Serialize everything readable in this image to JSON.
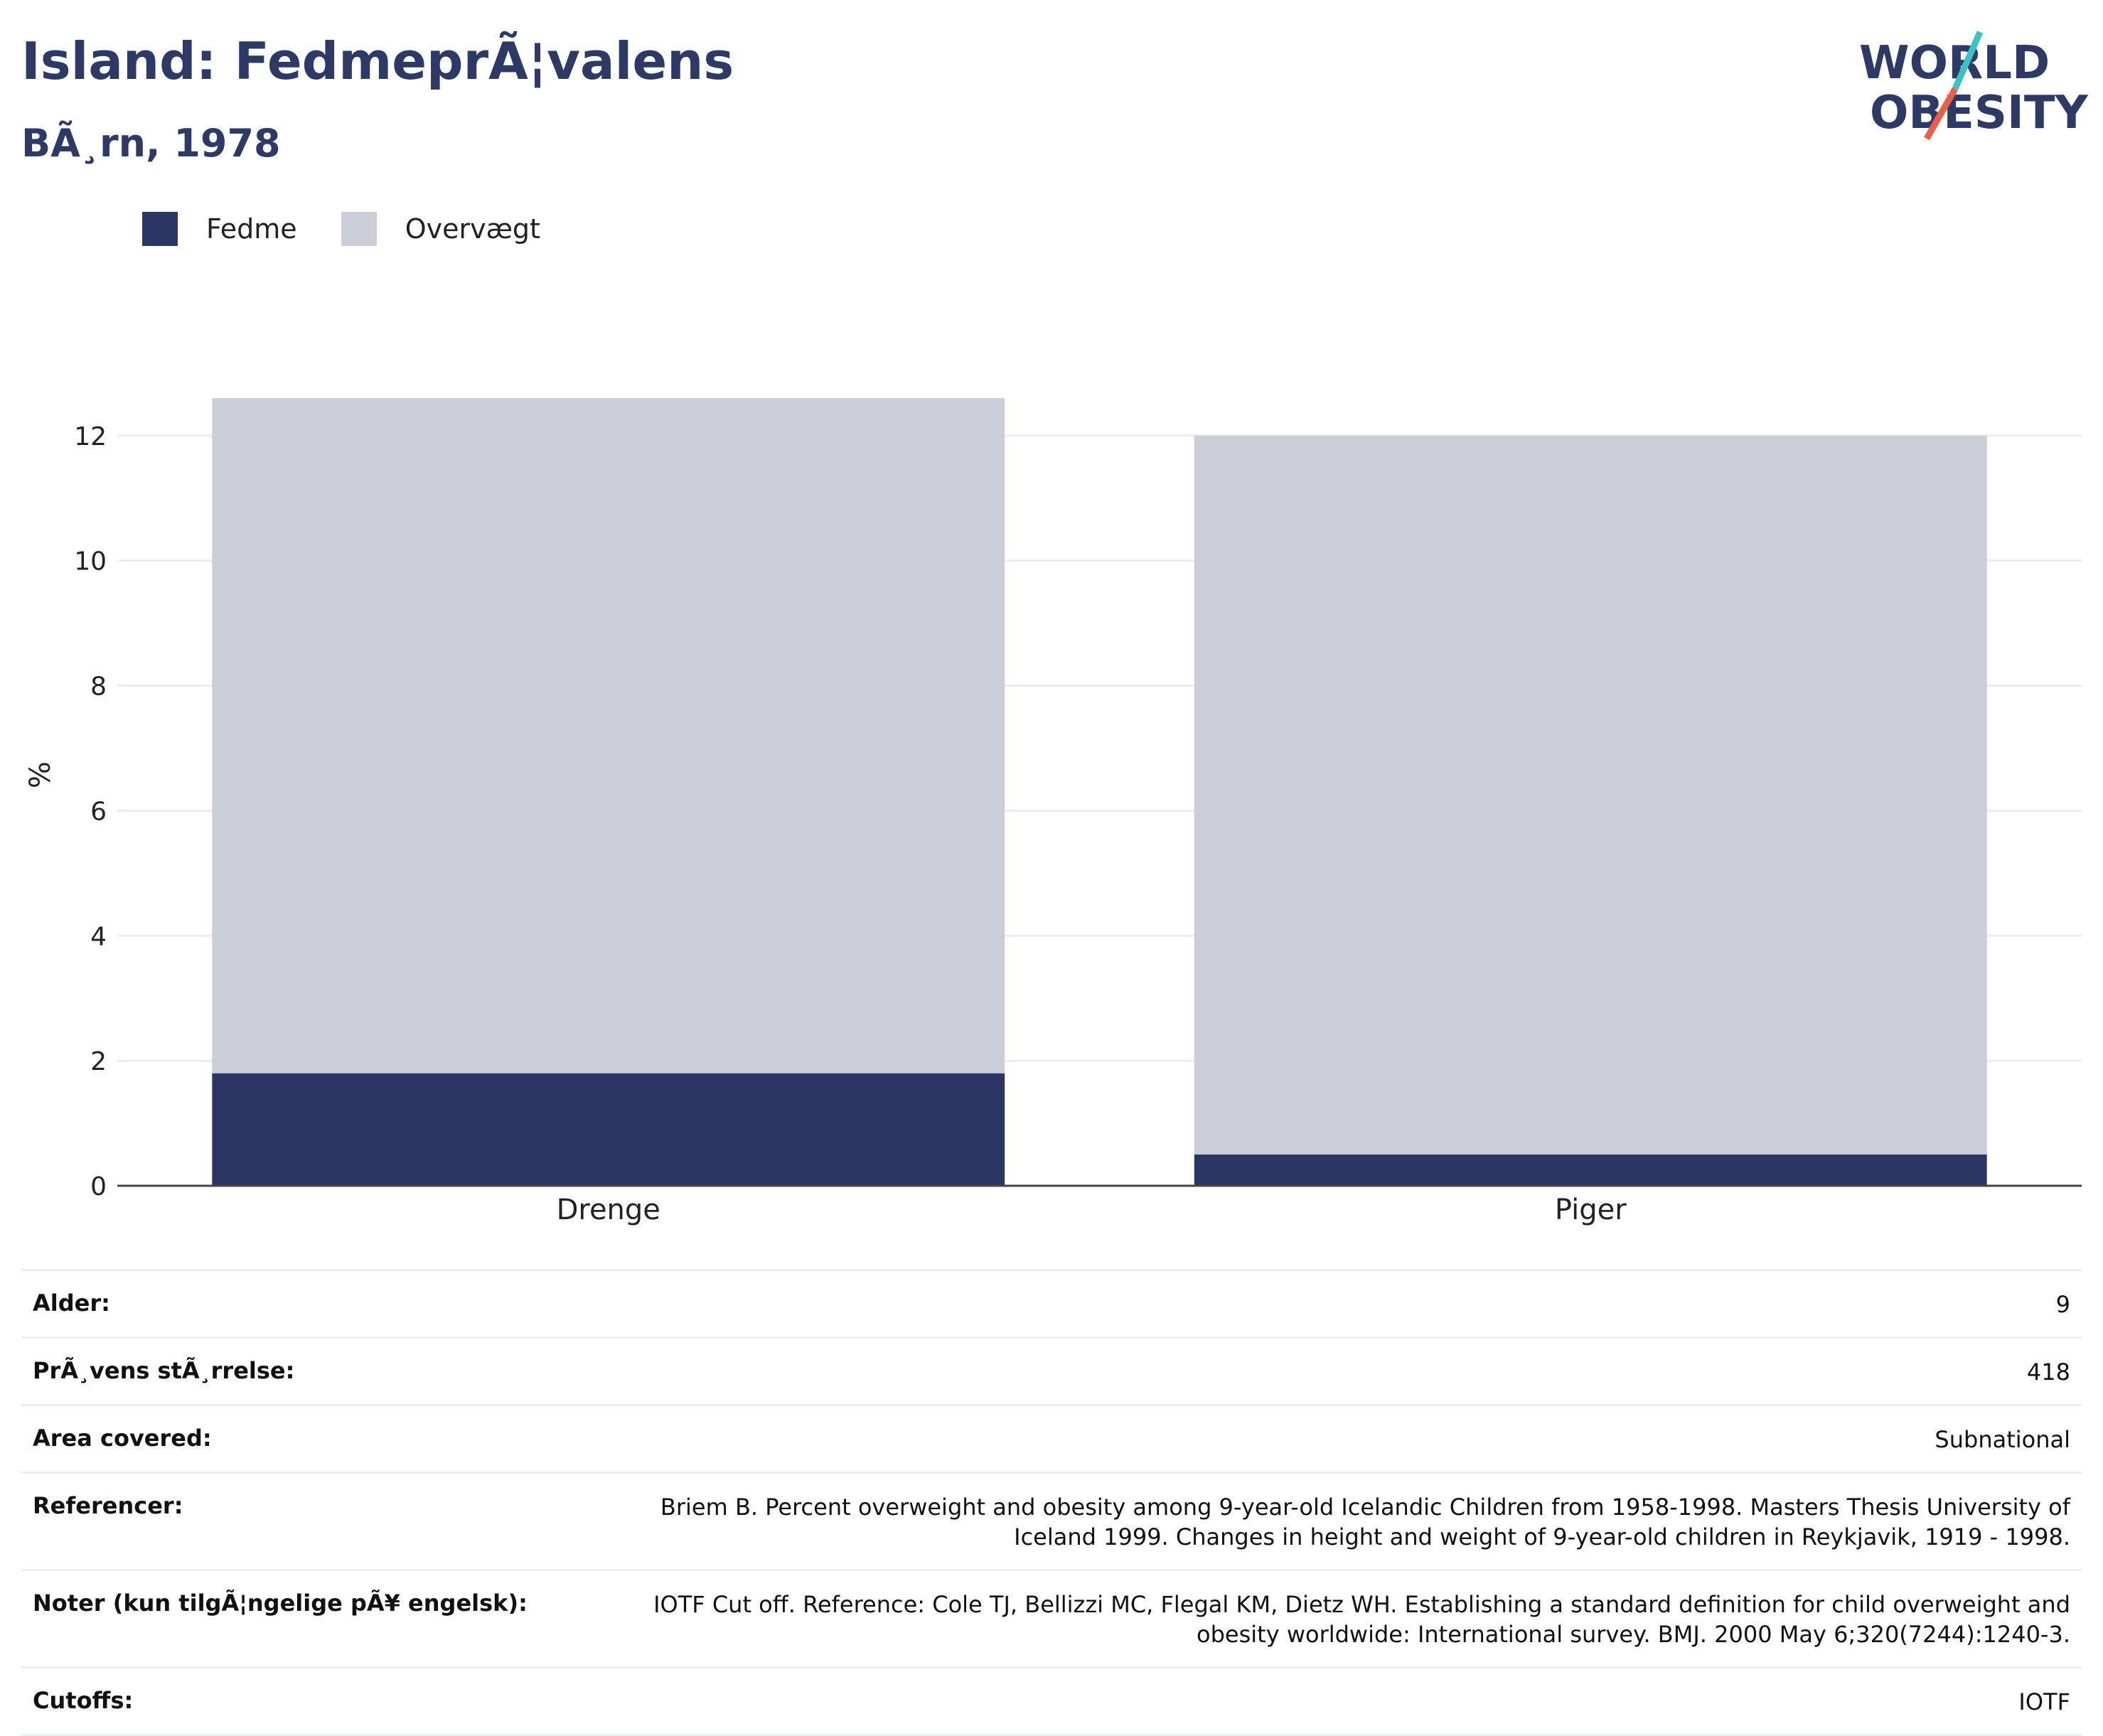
{
  "header": {
    "title": "Island: FedmeprÃ¦valens",
    "subtitle": "BÃ¸rn, 1978"
  },
  "logo": {
    "line1": "WORLD",
    "line2": "OBESITY",
    "colors": {
      "text": "#2d3a66",
      "accent_teal": "#3cc1c4",
      "accent_red": "#e8604c"
    }
  },
  "legend": [
    {
      "label": "Fedme",
      "color": "#2b3664"
    },
    {
      "label": "Overvægt",
      "color": "#cbcdd8"
    }
  ],
  "chart_data": {
    "type": "bar",
    "stacked": true,
    "categories": [
      "Drenge",
      "Piger"
    ],
    "series": [
      {
        "name": "Fedme",
        "values": [
          1.8,
          0.5
        ],
        "color": "#2b3664"
      },
      {
        "name": "Overvægt",
        "values": [
          10.8,
          11.5
        ],
        "color": "#cbcdd8"
      }
    ],
    "ylabel": "%",
    "yticks": [
      0,
      2,
      4,
      6,
      8,
      10,
      12
    ],
    "ylim": [
      0,
      12.6
    ],
    "grid": true,
    "legend_position": "top-left"
  },
  "info_table": [
    {
      "key": "Alder:",
      "value": "9"
    },
    {
      "key": "PrÃ¸vens stÃ¸rrelse:",
      "value": "418"
    },
    {
      "key": "Area covered:",
      "value": "Subnational"
    },
    {
      "key": "Referencer:",
      "value": "Briem B. Percent overweight and obesity among 9-year-old Icelandic Children from 1958-1998. Masters Thesis University of Iceland 1999. Changes in height and weight of 9-year-old children in Reykjavik, 1919 - 1998."
    },
    {
      "key": "Noter (kun tilgÃ¦ngelige pÃ¥ engelsk):",
      "value": "IOTF Cut off. Reference: Cole TJ, Bellizzi MC, Flegal KM, Dietz WH. Establishing a standard definition for child overweight and obesity worldwide: International survey. BMJ. 2000 May 6;320(7244):1240-3."
    },
    {
      "key": "Cutoffs:",
      "value": "IOTF"
    }
  ]
}
